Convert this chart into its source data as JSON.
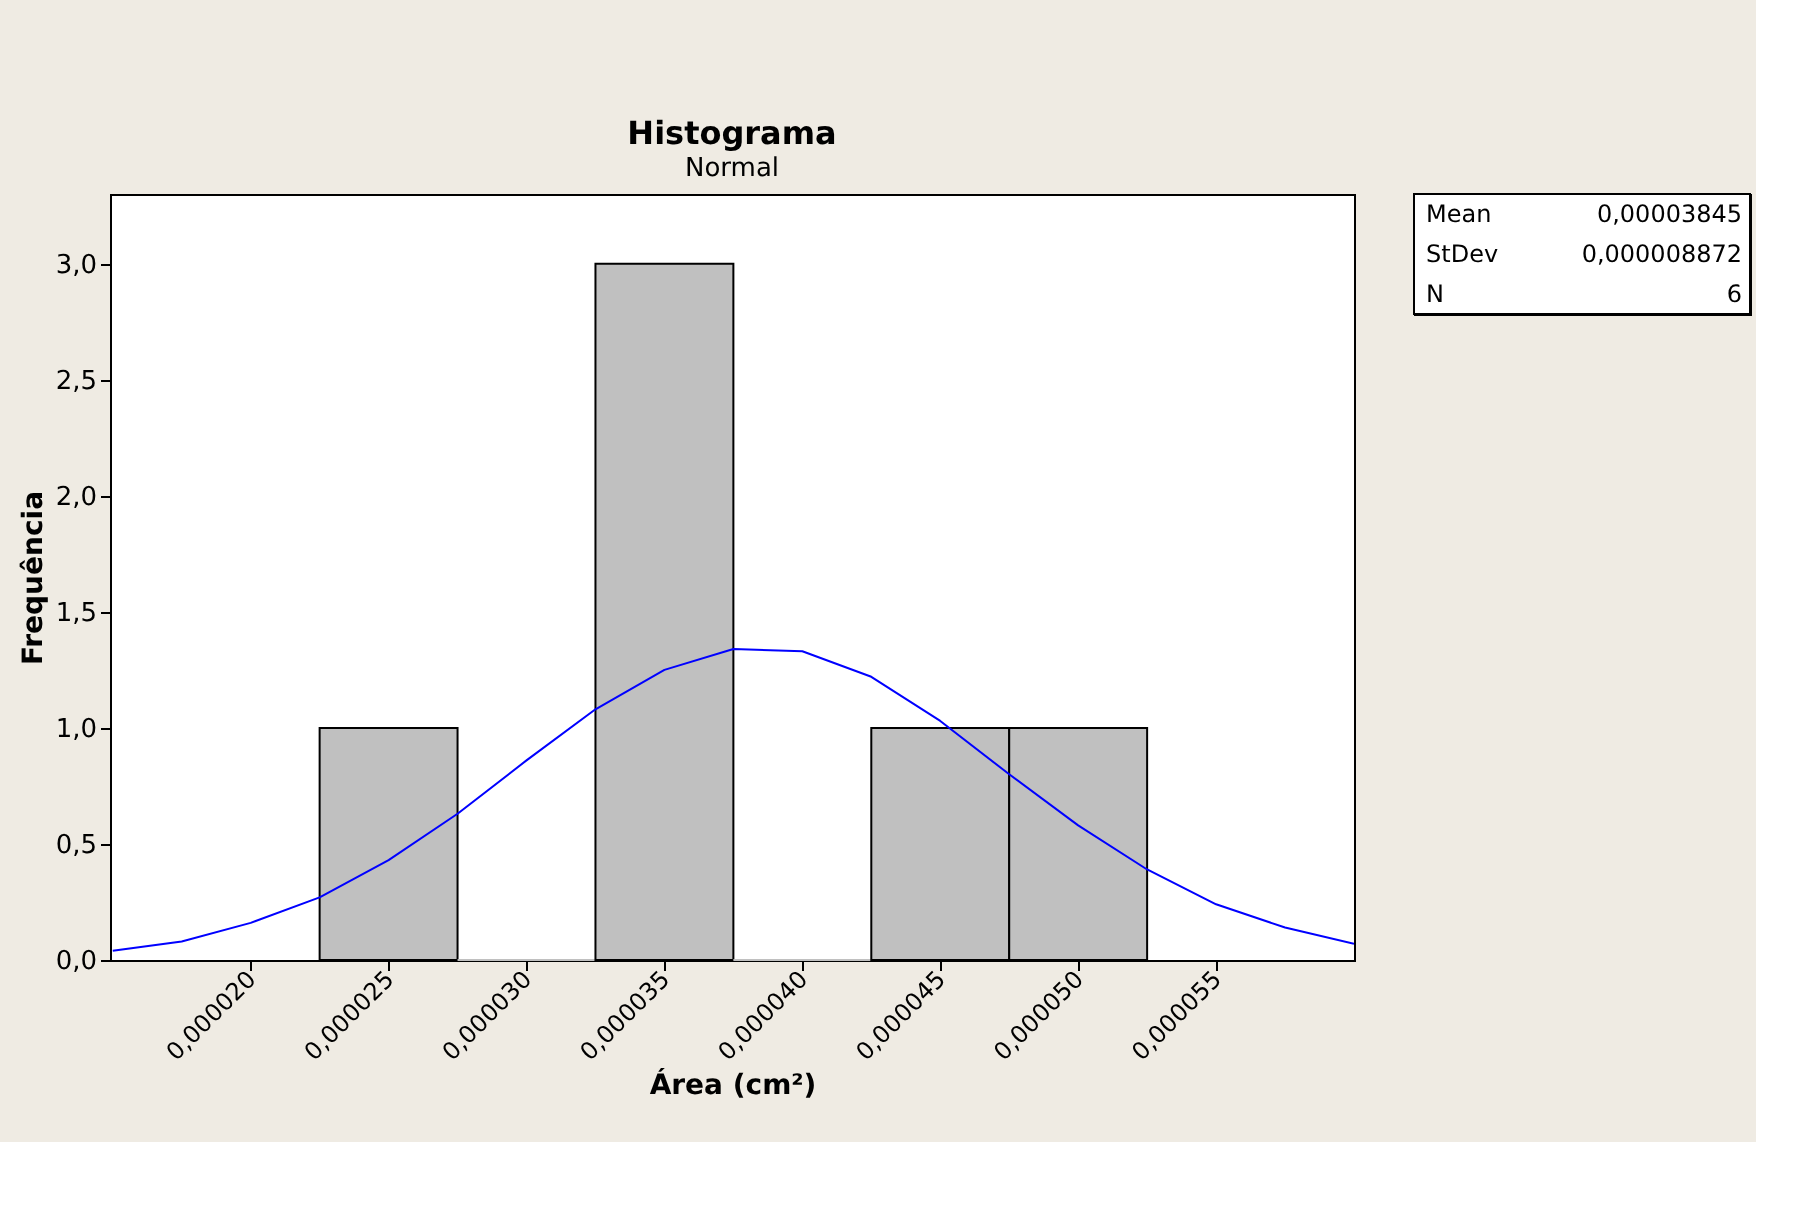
{
  "chart_data": {
    "type": "histogram",
    "title": "Histograma",
    "subtitle": "Normal",
    "xlabel": "Área (cm²)",
    "ylabel": "Frequência",
    "bins": [
      2.25e-05,
      2.75e-05,
      3.25e-05,
      3.75e-05,
      4.25e-05,
      4.75e-05,
      5.25e-05
    ],
    "values": [
      1,
      0,
      3,
      0,
      1,
      1
    ],
    "color": "#c0c0c0",
    "series": [
      {
        "type": "line",
        "color": "#0000ff",
        "x": [
          1.5e-05,
          1.75e-05,
          2e-05,
          2.25e-05,
          2.5e-05,
          2.75e-05,
          3e-05,
          3.25e-05,
          3.5e-05,
          3.75e-05,
          4e-05,
          4.25e-05,
          4.5e-05,
          4.75e-05,
          5e-05,
          5.25e-05,
          5.5e-05,
          5.75e-05,
          6e-05
        ],
        "values": [
          0.04,
          0.08,
          0.16,
          0.27,
          0.43,
          0.63,
          0.86,
          1.08,
          1.25,
          1.34,
          1.33,
          1.22,
          1.03,
          0.8,
          0.58,
          0.39,
          0.24,
          0.14,
          0.07
        ]
      }
    ],
    "xlim": [
      1.49e-05,
      6e-05
    ],
    "xticks": [
      {
        "value": 2e-05,
        "label": "0,000020"
      },
      {
        "value": 2.5e-05,
        "label": "0,000025"
      },
      {
        "value": 3e-05,
        "label": "0,000030"
      },
      {
        "value": 3.5e-05,
        "label": "0,000035"
      },
      {
        "value": 4e-05,
        "label": "0,000040"
      },
      {
        "value": 4.5e-05,
        "label": "0,000045"
      },
      {
        "value": 5e-05,
        "label": "0,000050"
      },
      {
        "value": 5.5e-05,
        "label": "0,000055"
      }
    ],
    "ylim": [
      0,
      3.3
    ],
    "yticks": [
      {
        "value": 0,
        "label": "0,0"
      },
      {
        "value": 0.5,
        "label": "0,5"
      },
      {
        "value": 1,
        "label": "1,0"
      },
      {
        "value": 1.5,
        "label": "1,5"
      },
      {
        "value": 2,
        "label": "2,0"
      },
      {
        "value": 2.5,
        "label": "2,5"
      },
      {
        "value": 3,
        "label": "3,0"
      }
    ],
    "grid": false,
    "annotations": [
      "Mean 0,00003845",
      "StDev 0,000008872",
      "N 6"
    ]
  }
}
